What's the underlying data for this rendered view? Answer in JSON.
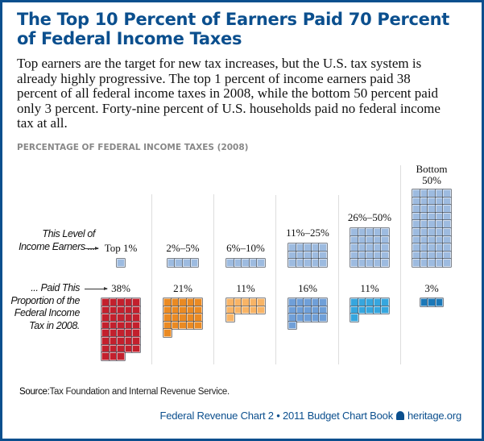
{
  "title": "The Top 10 Percent of Earners Paid 70 Percent of Federal Income Taxes",
  "subtitle": "Top earners are the target for new tax increases, but the U.S. tax system is already highly progressive. The top 1 percent of income earners paid 38 percent of all federal income taxes in 2008, while the bottom 50 percent paid only 3 percent. Forty-nine percent of U.S. households paid no federal income tax at all.",
  "chart_data": {
    "type": "bar",
    "title": "PERCENTAGE OF FEDERAL INCOME TAXES (2008)",
    "row_labels": {
      "earners": "This Level of Income Earners ...",
      "tax": "... Paid This Proportion of the Federal Income Tax in 2008."
    },
    "categories": [
      "Top 1%",
      "2%–5%",
      "6%–10%",
      "11%–25%",
      "26%–50%",
      "Bottom 50%"
    ],
    "series": [
      {
        "name": "This Level of Income Earners",
        "values": [
          1,
          4,
          5,
          15,
          25,
          50
        ],
        "color": "#9dbbe0"
      },
      {
        "name": "Paid This Proportion of the Federal Income Tax in 2008",
        "values": [
          38,
          21,
          11,
          16,
          11,
          3
        ],
        "labels": [
          "38%",
          "21%",
          "11%",
          "16%",
          "11%",
          "3%"
        ],
        "colors": [
          "#c3202d",
          "#ea8a23",
          "#f8b466",
          "#6f9fd8",
          "#36a6de",
          "#1b78b8"
        ]
      }
    ],
    "unit": "percent, one square = 1%"
  },
  "source_label": "Source:",
  "source_text": "Tax Foundation and Internal Revenue Service.",
  "footer": "Federal Revenue Chart 2 • 2011 Budget Chart Book",
  "footer_site": "heritage.org"
}
